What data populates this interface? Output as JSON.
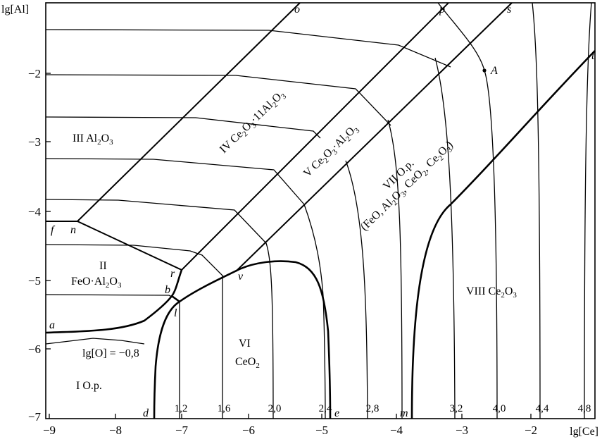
{
  "axes": {
    "x_title": "lg[Ce]",
    "y_title": "lg[Al]",
    "x_ticks": [
      "−9",
      "−8",
      "−7",
      "−6",
      "−5",
      "−4",
      "−3",
      "−2"
    ],
    "y_ticks": [
      "−2",
      "−3",
      "−4",
      "−5",
      "−6",
      "−7"
    ]
  },
  "regions": {
    "r1": "I  O.p.",
    "r2_num": "II",
    "r2_formula": "FeO·Al",
    "r2_sub1": "2",
    "r2_tail": "O",
    "r2_sub2": "3",
    "r3_num": "III  Al",
    "r3_sub1": "2",
    "r3_tail": "O",
    "r3_sub2": "3",
    "r4_a": "IV Ce",
    "r4_s1": "2",
    "r4_b": "O",
    "r4_s2": "3",
    "r4_c": "·11Al",
    "r4_s3": "2",
    "r4_d": "O",
    "r4_s4": "3",
    "r5_a": "V  Ce",
    "r5_s1": "2",
    "r5_b": "O",
    "r5_s2": "3",
    "r5_c": "·Al",
    "r5_s3": "2",
    "r5_d": "O",
    "r5_s4": "3",
    "r6_num": "VI",
    "r6_formula": "CeO",
    "r6_sub": "2",
    "r7_line1": "VII  O.p.",
    "r7_a": "(FeO, Al",
    "r7_s1": "2",
    "r7_b": "O",
    "r7_s2": "3",
    "r7_c": ", CeO",
    "r7_s3": "2",
    "r7_d": ", Ce",
    "r7_s4": "2",
    "r7_e": "O",
    "r7_s5": "3",
    "r7_f": ")",
    "r8_a": "VIII  Ce",
    "r8_s1": "2",
    "r8_b": "O",
    "r8_s2": "3"
  },
  "oxygen_isoline_label": "lg[O] = −0,8",
  "points": {
    "o": "o",
    "p": "p",
    "s": "s",
    "t": "t",
    "A": "A",
    "n": "n",
    "f": "f",
    "r": "r",
    "b": "b",
    "l": "l",
    "a": "a",
    "v": "v",
    "d": "d",
    "e": "e",
    "m": "m"
  },
  "isoline_values": [
    "1,2",
    "1,6",
    "2,0",
    "2,4",
    "2,8",
    "3,2",
    "4,0",
    "4,4",
    "4,8"
  ]
}
